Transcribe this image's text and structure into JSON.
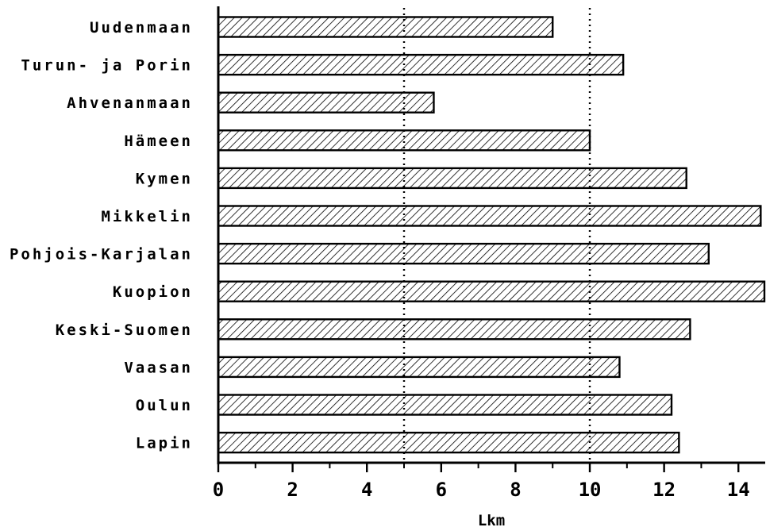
{
  "chart_data": {
    "type": "bar",
    "orientation": "horizontal",
    "categories": [
      "Uudenmaan",
      "Turun- ja Porin",
      "Ahvenanmaan",
      "Hämeen",
      "Kymen",
      "Mikkelin",
      "Pohjois-Karjalan",
      "Kuopion",
      "Keski-Suomen",
      "Vaasan",
      "Oulun",
      "Lapin"
    ],
    "values": [
      9.0,
      10.9,
      5.8,
      10.0,
      12.6,
      14.6,
      13.2,
      14.7,
      12.7,
      10.8,
      12.2,
      12.4
    ],
    "xlabel": "Lkm",
    "ylabel": "",
    "xlim": [
      0,
      14.7
    ],
    "xticks": [
      "0",
      "2",
      "4",
      "6",
      "8",
      "10",
      "12",
      "14"
    ],
    "reference_lines": [
      5,
      10
    ],
    "bar_fill": "diagonal-hatch",
    "colors": {
      "bar_stroke": "#000000",
      "hatch": "#000000",
      "background": "#ffffff"
    }
  }
}
